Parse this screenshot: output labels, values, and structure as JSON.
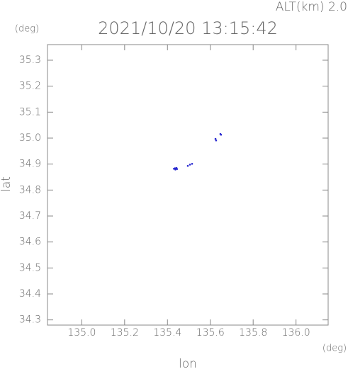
{
  "chart_data": {
    "type": "scatter",
    "title": "2021/10/20 13:15:42",
    "annotation": "ALT(km) 2.0",
    "y_unit": "(deg)",
    "x_unit": "(deg)",
    "xlabel": "lon",
    "ylabel": "lat",
    "color": "#2a2ad0",
    "x": [
      135.43,
      135.435,
      135.44,
      135.445,
      135.437,
      135.442,
      135.495,
      135.505,
      135.515,
      135.627,
      135.624,
      135.647,
      135.65
    ],
    "values": [
      34.882,
      34.884,
      34.883,
      34.881,
      34.879,
      34.885,
      34.893,
      34.898,
      34.901,
      34.991,
      34.997,
      35.016,
      35.013
    ],
    "xlim": [
      134.84,
      136.15
    ],
    "ylim": [
      34.28,
      35.36
    ],
    "xticks": [
      {
        "value": 135,
        "label": "135.0"
      },
      135.2,
      135.4,
      135.6,
      135.8,
      {
        "value": 136,
        "label": "136.0"
      }
    ],
    "yticks": [
      34.3,
      34.4,
      34.5,
      34.6,
      34.7,
      34.8,
      34.9,
      {
        "value": 35,
        "label": "35.0"
      },
      35.1,
      35.2,
      35.3
    ]
  }
}
